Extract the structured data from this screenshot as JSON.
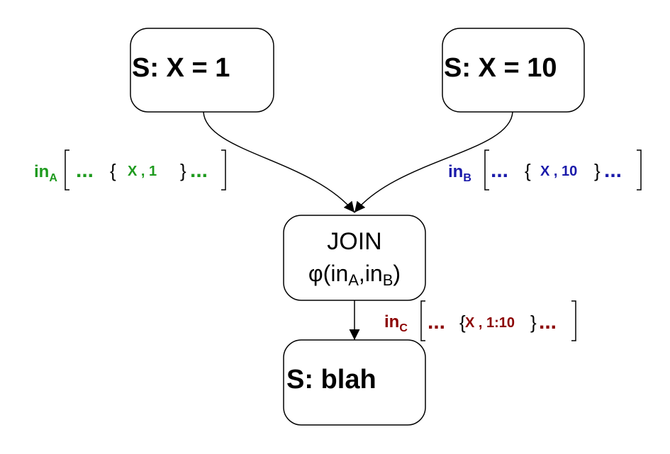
{
  "nodes": {
    "s1": {
      "label": "S: X = 1"
    },
    "s10": {
      "label": "S: X = 10"
    },
    "join": {
      "title": "JOIN",
      "phi": "φ(in",
      "sub_a": "A",
      "comma": ",in",
      "sub_b": "B",
      "close": ")"
    },
    "blah": {
      "label": "S: blah"
    }
  },
  "sets": {
    "in_a": {
      "name": "in",
      "sub": "A",
      "pre": "...",
      "tuple": "X , 1",
      "post": "..."
    },
    "in_b": {
      "name": "in",
      "sub": "B",
      "pre": "...",
      "tuple": "X , 10",
      "post": "..."
    },
    "in_c": {
      "name": "in",
      "sub": "C",
      "pre": "...",
      "tuple": "X , 1:10",
      "post": "..."
    }
  },
  "colors": {
    "green": "#1e9a1e",
    "blue": "#1a1aaa",
    "red": "#8b0000",
    "stroke": "#000000"
  }
}
